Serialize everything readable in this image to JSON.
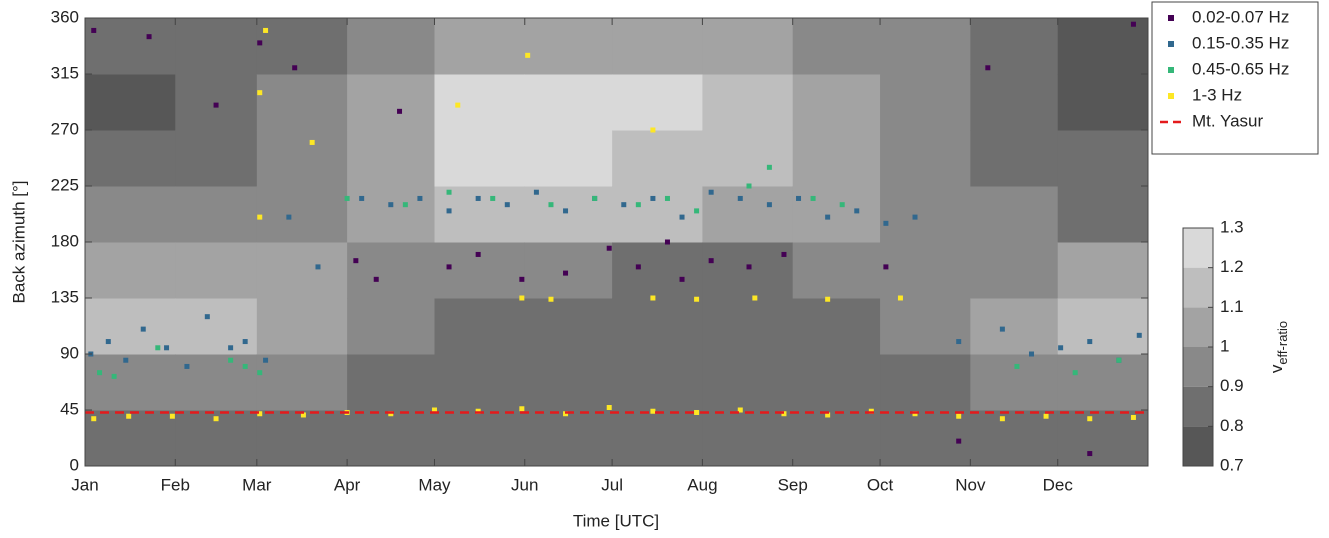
{
  "chart_data": {
    "type": "scatter",
    "xlabel": "Time [UTC]",
    "ylabel": "Back azimuth [°]",
    "xlim": [
      0,
      365
    ],
    "xticks": [
      {
        "value": 0,
        "label": "Jan"
      },
      {
        "value": 31,
        "label": "Feb"
      },
      {
        "value": 59,
        "label": "Mar"
      },
      {
        "value": 90,
        "label": "Apr"
      },
      {
        "value": 120,
        "label": "May"
      },
      {
        "value": 151,
        "label": "Jun"
      },
      {
        "value": 181,
        "label": "Jul"
      },
      {
        "value": 212,
        "label": "Aug"
      },
      {
        "value": 243,
        "label": "Sep"
      },
      {
        "value": 273,
        "label": "Oct"
      },
      {
        "value": 304,
        "label": "Nov"
      },
      {
        "value": 334,
        "label": "Dec"
      }
    ],
    "ylim": [
      0,
      360
    ],
    "yticks": [
      0,
      45,
      90,
      135,
      180,
      225,
      270,
      315,
      360
    ],
    "legend": "upper right",
    "series": [
      {
        "name": "0.02-0.07 Hz",
        "color": "#440154",
        "x": [
          3,
          22,
          45,
          60,
          72,
          93,
          100,
          108,
          125,
          135,
          150,
          165,
          180,
          190,
          200,
          205,
          215,
          228,
          240,
          275,
          300,
          310,
          345,
          360
        ],
        "values": [
          350,
          345,
          290,
          340,
          320,
          165,
          150,
          285,
          160,
          170,
          150,
          155,
          175,
          160,
          180,
          150,
          165,
          160,
          170,
          160,
          20,
          320,
          10,
          355
        ]
      },
      {
        "name": "0.15-0.35 Hz",
        "color": "#31688e",
        "x": [
          2,
          8,
          14,
          20,
          28,
          35,
          42,
          50,
          55,
          62,
          70,
          80,
          95,
          105,
          115,
          125,
          135,
          145,
          155,
          165,
          175,
          185,
          195,
          205,
          215,
          225,
          235,
          245,
          255,
          265,
          275,
          285,
          300,
          315,
          325,
          335,
          345,
          355,
          362
        ],
        "values": [
          90,
          100,
          85,
          110,
          95,
          80,
          120,
          95,
          100,
          85,
          200,
          160,
          215,
          210,
          215,
          205,
          215,
          210,
          220,
          205,
          215,
          210,
          215,
          200,
          220,
          215,
          210,
          215,
          200,
          205,
          195,
          200,
          100,
          110,
          90,
          95,
          100,
          85,
          105
        ]
      },
      {
        "name": "0.45-0.65 Hz",
        "color": "#35b779",
        "x": [
          5,
          10,
          25,
          50,
          55,
          60,
          90,
          110,
          125,
          140,
          160,
          175,
          190,
          200,
          210,
          228,
          235,
          250,
          260,
          320,
          340,
          355
        ],
        "values": [
          75,
          72,
          95,
          85,
          80,
          75,
          215,
          210,
          220,
          215,
          210,
          215,
          210,
          215,
          205,
          225,
          240,
          215,
          210,
          80,
          75,
          85
        ]
      },
      {
        "name": "1-3 Hz",
        "color": "#fde725",
        "x": [
          3,
          15,
          30,
          45,
          60,
          75,
          90,
          105,
          120,
          135,
          150,
          165,
          180,
          195,
          210,
          225,
          240,
          255,
          270,
          285,
          300,
          315,
          330,
          345,
          360,
          150,
          160,
          195,
          210,
          230,
          255,
          280,
          60,
          60,
          78,
          152,
          128,
          195,
          62
        ],
        "values": [
          38,
          40,
          40,
          38,
          42,
          41,
          43,
          42,
          45,
          44,
          46,
          42,
          47,
          44,
          43,
          45,
          42,
          41,
          44,
          42,
          40,
          38,
          40,
          38,
          39,
          135,
          134,
          135,
          134,
          135,
          134,
          135,
          300,
          200,
          260,
          330,
          290,
          270,
          350
        ]
      }
    ],
    "reference": {
      "name": "Mt. Yasur",
      "color": "#e41a1c",
      "value": 43
    },
    "background": {
      "x_edges": [
        0,
        31,
        59,
        90,
        120,
        151,
        181,
        212,
        243,
        273,
        304,
        334,
        365
      ],
      "z": [
        [
          0.85,
          0.95,
          1.15,
          1.05,
          0.95,
          0.85,
          0.75,
          0.85
        ],
        [
          0.85,
          0.95,
          1.15,
          1.05,
          0.95,
          0.85,
          0.85,
          0.85
        ],
        [
          0.85,
          0.95,
          1.05,
          1.05,
          0.95,
          0.95,
          0.95,
          0.85
        ],
        [
          0.85,
          0.85,
          0.95,
          0.95,
          1.05,
          1.05,
          1.05,
          0.95
        ],
        [
          0.85,
          0.85,
          0.85,
          0.95,
          1.15,
          1.25,
          1.25,
          1.05
        ],
        [
          0.85,
          0.85,
          0.85,
          0.95,
          1.15,
          1.25,
          1.25,
          1.05
        ],
        [
          0.85,
          0.85,
          0.85,
          0.85,
          1.15,
          1.15,
          1.25,
          1.05
        ],
        [
          0.85,
          0.85,
          0.85,
          0.85,
          1.05,
          1.15,
          1.15,
          1.05
        ],
        [
          0.85,
          0.85,
          0.85,
          0.95,
          1.05,
          1.05,
          1.05,
          0.95
        ],
        [
          0.85,
          0.85,
          0.95,
          0.95,
          0.95,
          0.95,
          0.95,
          0.95
        ],
        [
          0.85,
          0.95,
          1.05,
          0.95,
          0.95,
          0.85,
          0.85,
          0.85
        ],
        [
          0.85,
          0.95,
          1.15,
          1.05,
          0.85,
          0.85,
          0.75,
          0.75
        ]
      ]
    },
    "colorbar": {
      "label": "v",
      "label_sub": "eff-ratio",
      "lim": [
        0.7,
        1.3
      ],
      "ticks": [
        0.7,
        0.8,
        0.9,
        1,
        1.1,
        1.2,
        1.3
      ],
      "colors": [
        "#575757",
        "#6f6f6f",
        "#898989",
        "#a3a3a3",
        "#bebebe",
        "#d9d9d9"
      ]
    }
  }
}
